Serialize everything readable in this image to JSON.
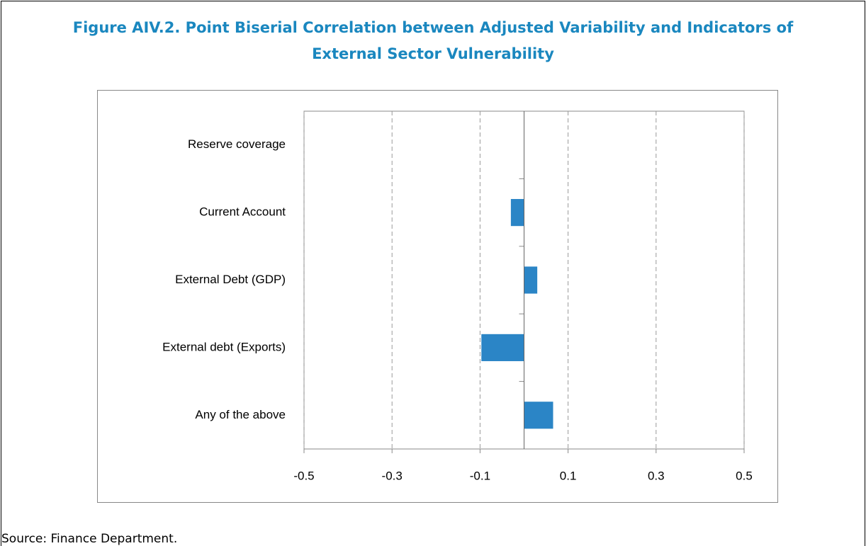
{
  "chart_data": {
    "type": "hbar",
    "title": [
      "Figure AIV.2. Point Biserial Correlation between Adjusted Variability and Indicators of",
      "External Sector Vulnerability"
    ],
    "categories": [
      "Reserve coverage",
      "Current Account",
      "External Debt (GDP)",
      "External debt (Exports)",
      "Any of the above"
    ],
    "values": [
      0,
      -0.03,
      0.03,
      -0.097,
      0.066
    ],
    "color": "#2b85c6",
    "xlim": [
      -0.5,
      0.5
    ],
    "xticks": [
      -0.5,
      -0.3,
      -0.1,
      0.1,
      0.3,
      0.5
    ],
    "grid": true
  },
  "source": "Source: Finance Department."
}
